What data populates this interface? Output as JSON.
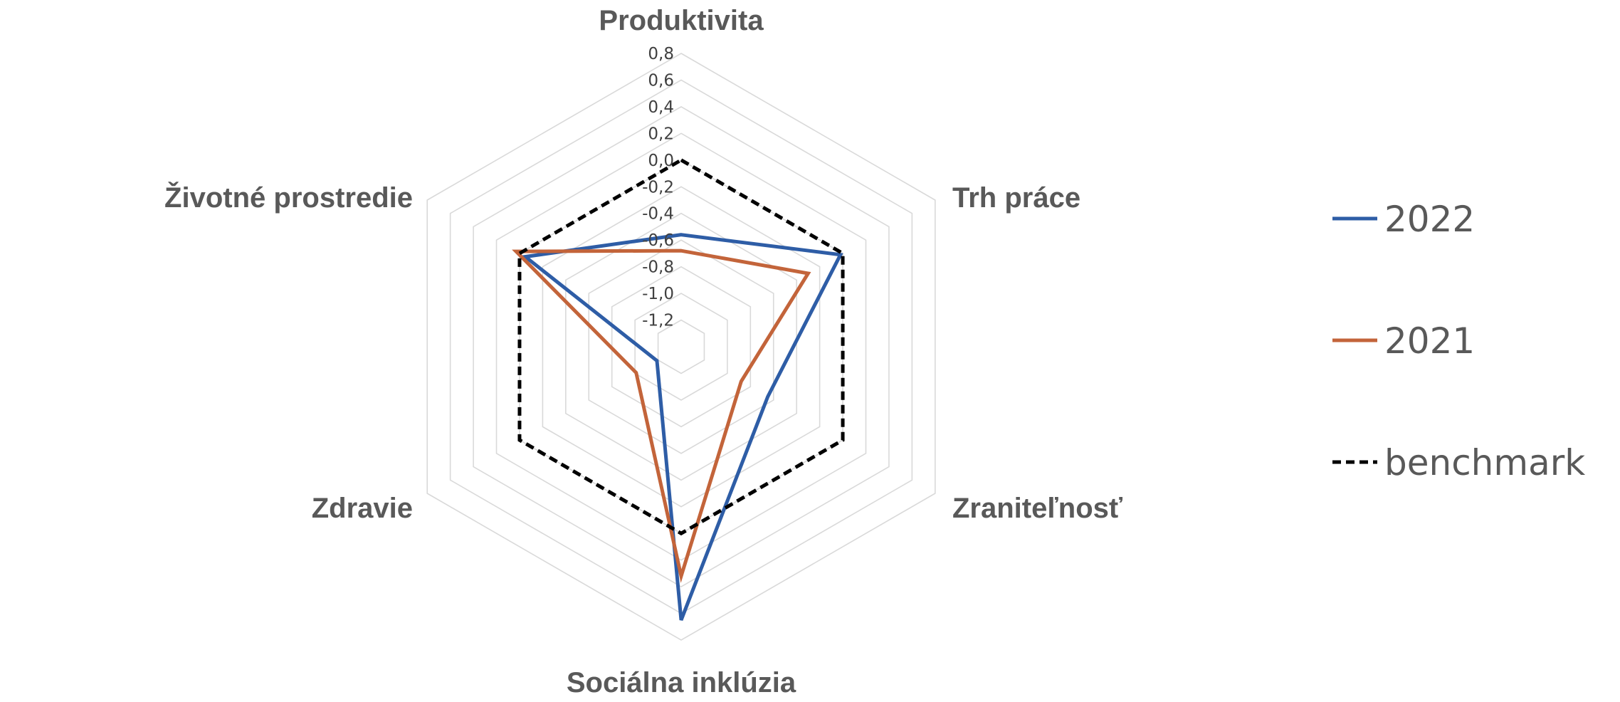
{
  "chart_data": {
    "type": "radar",
    "categories": [
      "Produktivita",
      "Trh práce",
      "Zraniteľnosť",
      "Sociálna inklúzia",
      "Zdravie",
      "Životné prostredie"
    ],
    "rlim": [
      -1.4,
      0.8
    ],
    "ticks": [
      0.8,
      0.6,
      0.4,
      0.2,
      0.0,
      -0.2,
      -0.4,
      -0.6,
      -0.8,
      -1.0,
      -1.2
    ],
    "tick_labels": [
      "0,8",
      "0,6",
      "0,4",
      "0,2",
      "0,0",
      "-0,2",
      "-0,4",
      "-0,6",
      "-0,8",
      "-1,0",
      "-1,2"
    ],
    "grid": true,
    "legend_position": "right",
    "series": [
      {
        "name": "2022",
        "color": "#2E5DA6",
        "style": "solid",
        "values": [
          -0.56,
          -0.02,
          -0.65,
          0.65,
          -1.19,
          -0.05
        ]
      },
      {
        "name": "2021",
        "color": "#C3643A",
        "style": "solid",
        "values": [
          -0.68,
          -0.3,
          -0.88,
          0.32,
          -1.01,
          0.03
        ]
      },
      {
        "name": "benchmark",
        "color": "#000000",
        "style": "dashed",
        "values": [
          0.0,
          0.0,
          0.0,
          0.0,
          0.0,
          0.0
        ]
      }
    ]
  }
}
